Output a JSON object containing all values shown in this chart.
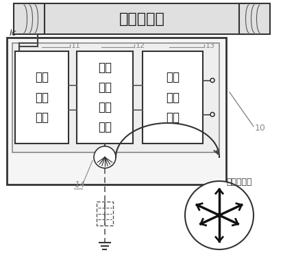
{
  "title": "直流输电线",
  "ic_label": "Ic",
  "label10": "10",
  "label11": "11",
  "label12": "12",
  "label13": "13",
  "label14": "14",
  "multi_electrode_label": "多电极结构",
  "bg_color": "#ffffff"
}
